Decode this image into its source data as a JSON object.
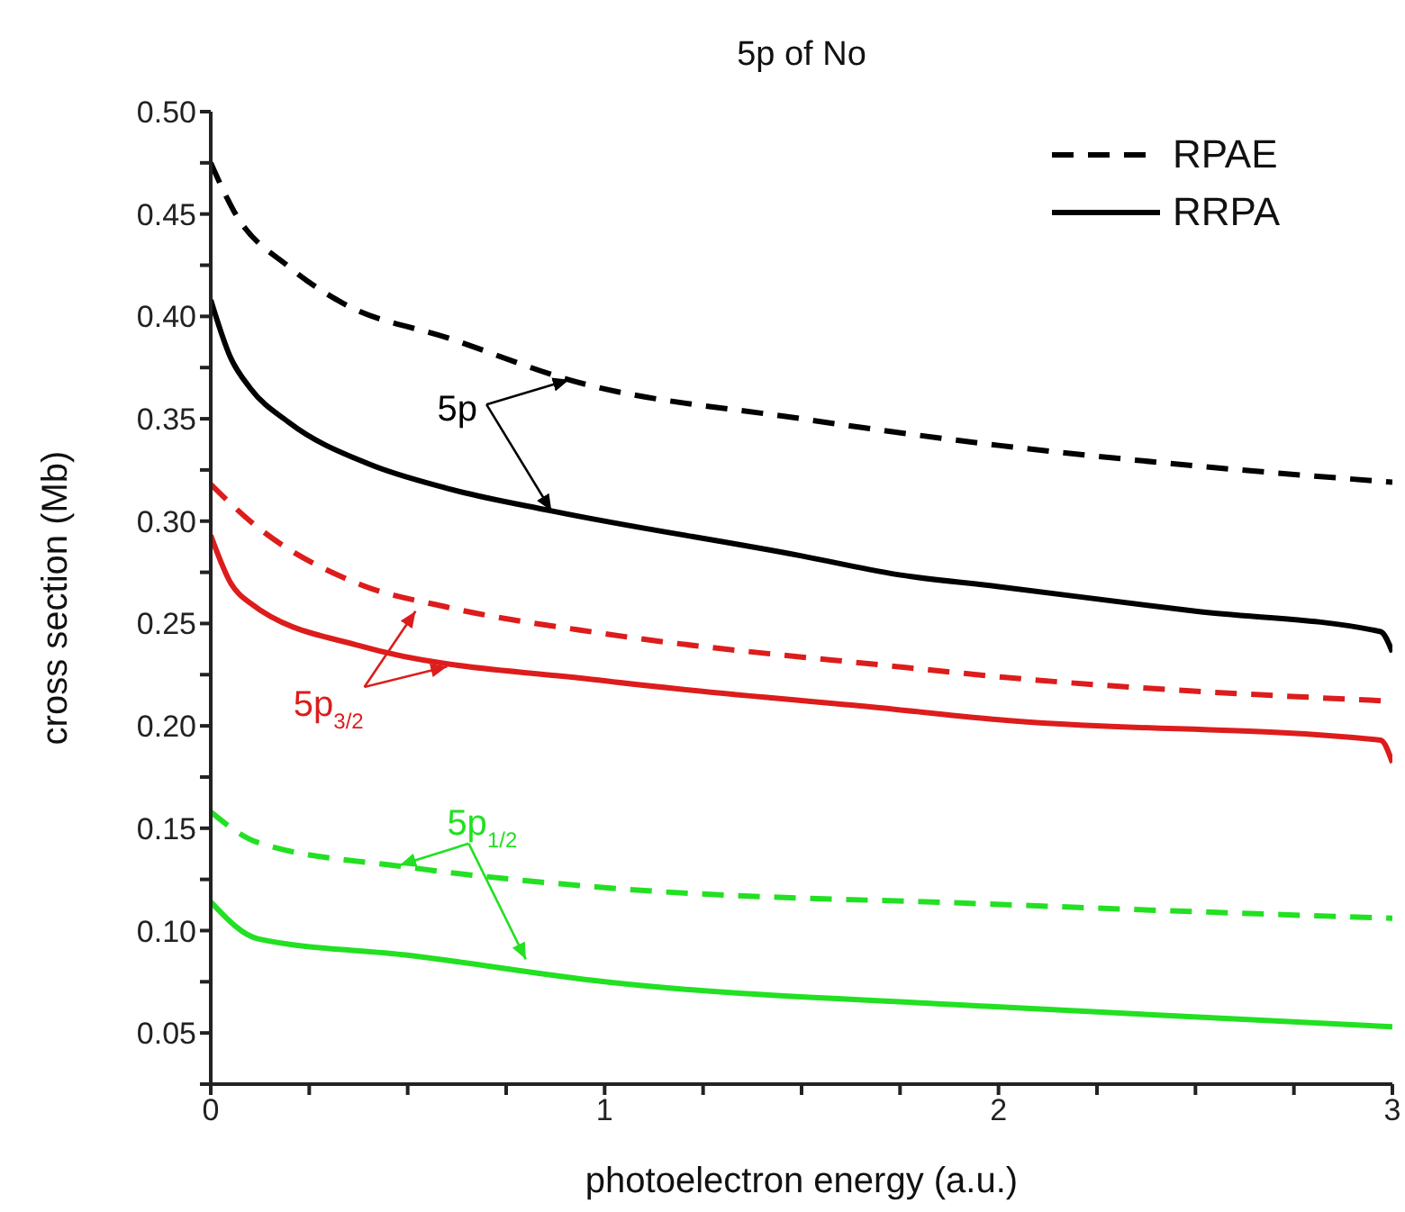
{
  "chart_data": {
    "type": "line",
    "title": "5p of No",
    "xlabel": "photoelectron energy (a.u.)",
    "ylabel": "cross section (Mb)",
    "xlim": [
      0,
      3
    ],
    "ylim": [
      0.025,
      0.5
    ],
    "xticks": [
      0,
      {
        "value": 0.25,
        "label": null
      },
      {
        "value": 0.5,
        "label": null
      },
      {
        "value": 0.75,
        "label": null
      },
      1,
      {
        "value": 1.25,
        "label": null
      },
      {
        "value": 1.5,
        "label": null
      },
      {
        "value": 1.75,
        "label": null
      },
      2,
      {
        "value": 2.25,
        "label": null
      },
      {
        "value": 2.5,
        "label": null
      },
      {
        "value": 2.75,
        "label": null
      },
      3
    ],
    "yticks": [
      {
        "value": 0.025,
        "label": null
      },
      {
        "value": 0.05,
        "label": "0.05"
      },
      {
        "value": 0.075,
        "label": null
      },
      {
        "value": 0.1,
        "label": "0.10"
      },
      {
        "value": 0.125,
        "label": null
      },
      {
        "value": 0.15,
        "label": "0.15"
      },
      {
        "value": 0.175,
        "label": null
      },
      {
        "value": 0.2,
        "label": "0.20"
      },
      {
        "value": 0.225,
        "label": null
      },
      {
        "value": 0.25,
        "label": "0.25"
      },
      {
        "value": 0.275,
        "label": null
      },
      {
        "value": 0.3,
        "label": "0.30"
      },
      {
        "value": 0.325,
        "label": null
      },
      {
        "value": 0.35,
        "label": "0.35"
      },
      {
        "value": 0.375,
        "label": null
      },
      {
        "value": 0.4,
        "label": "0.40"
      },
      {
        "value": 0.425,
        "label": null
      },
      {
        "value": 0.45,
        "label": "0.45"
      },
      {
        "value": 0.475,
        "label": null
      },
      {
        "value": 0.5,
        "label": "0.50"
      }
    ],
    "grid": false,
    "legend": "top right",
    "marker": "none",
    "series": [
      {
        "name": "RPAE",
        "color": "#000000",
        "line_style": "dashed",
        "x": [
          0,
          0.06,
          0.2,
          0.33,
          0.61,
          0.91,
          1.5,
          2,
          2.5,
          3
        ],
        "values": [
          0.475,
          0.451,
          0.424,
          0.407,
          0.389,
          0.369,
          0.35,
          0.337,
          0.327,
          0.319
        ]
      },
      {
        "name": "RRPA",
        "color": "#000000",
        "line_style": "solid",
        "x": [
          0,
          0.05,
          0.1,
          0.2,
          0.4,
          0.6,
          0.865,
          1.5,
          1.74,
          2,
          2.5,
          2.97,
          3
        ],
        "values": [
          0.408,
          0.38,
          0.365,
          0.348,
          0.328,
          0.316,
          0.305,
          0.283,
          0.274,
          0.268,
          0.256,
          0.246,
          0.236
        ]
      },
      {
        "color": "#dd1c1c",
        "line_style": "dashed",
        "x": [
          0,
          0.1,
          0.38,
          0.6,
          1,
          1.74,
          2,
          3
        ],
        "values": [
          0.318,
          0.3,
          0.269,
          0.258,
          0.245,
          0.229,
          0.224,
          0.212
        ]
      },
      {
        "color": "#dd1c1c",
        "line_style": "solid",
        "x": [
          0,
          0.05,
          0.1,
          0.38,
          1,
          1.74,
          2,
          2.97,
          3
        ],
        "values": [
          0.293,
          0.27,
          0.26,
          0.239,
          0.222,
          0.208,
          0.203,
          0.193,
          0.182
        ]
      },
      {
        "color": "#22e022",
        "line_style": "dashed",
        "x": [
          0,
          0.12,
          0.5,
          1,
          1.97,
          3
        ],
        "values": [
          0.158,
          0.143,
          0.131,
          0.121,
          0.113,
          0.106
        ]
      },
      {
        "color": "#22e022",
        "line_style": "solid",
        "x": [
          0,
          0.12,
          0.5,
          1,
          1.97,
          3
        ],
        "values": [
          0.114,
          0.096,
          0.088,
          0.075,
          0.063,
          0.053
        ]
      }
    ],
    "annotations": [
      {
        "text": "5p",
        "x": 0.91,
        "y": 0.369
      },
      {
        "text": "5p$_{3/2}$",
        "x": 0.52,
        "y": 0.256
      },
      {
        "text": "5p$_{1/2}$",
        "x": 0.48,
        "y": 0.132
      }
    ]
  }
}
